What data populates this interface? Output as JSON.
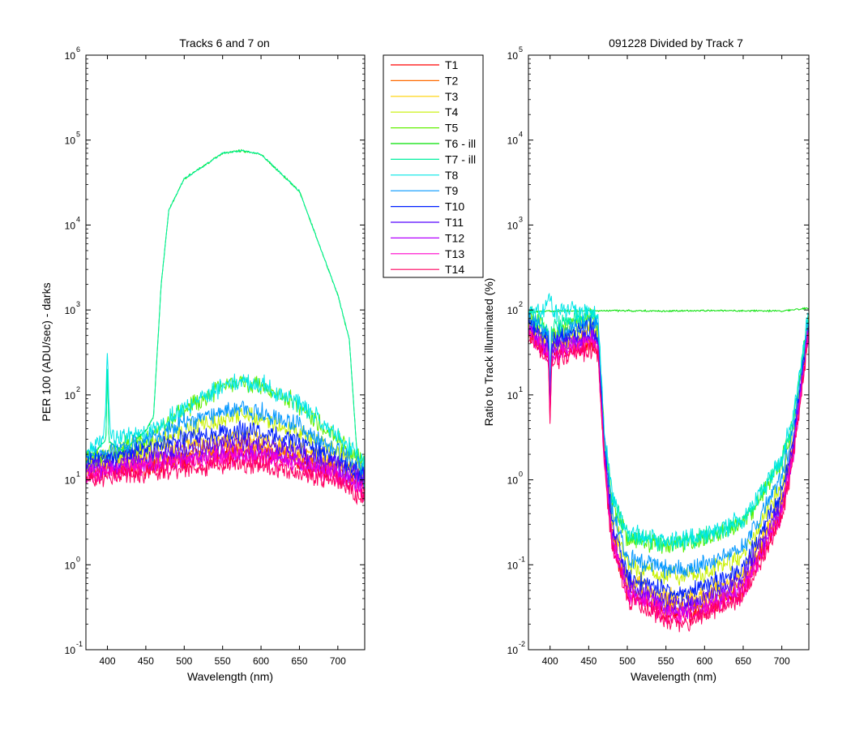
{
  "colors": [
    "#ff0000",
    "#ff6a00",
    "#ffd000",
    "#c8f000",
    "#60f000",
    "#00e000",
    "#00f0a0",
    "#00e6e6",
    "#0096ff",
    "#0020ff",
    "#5500ff",
    "#b400ff",
    "#ff00cc",
    "#ff0060"
  ],
  "chart_data": [
    {
      "type": "line",
      "title": "Tracks 6 and 7 on",
      "xlabel": "Wavelength (nm)",
      "ylabel": "PER 100  (ADU/sec) - darks",
      "xlim": [
        372,
        735
      ],
      "ylim": [
        0.1,
        1000000
      ],
      "yscale": "log",
      "xticks": [
        400,
        450,
        500,
        550,
        600,
        650,
        700
      ],
      "yticks": [
        {
          "base": "10",
          "exp": "-1"
        },
        {
          "base": "10",
          "exp": "0"
        },
        {
          "base": "10",
          "exp": "1"
        },
        {
          "base": "10",
          "exp": "2"
        },
        {
          "base": "10",
          "exp": "3"
        },
        {
          "base": "10",
          "exp": "4"
        },
        {
          "base": "10",
          "exp": "5"
        },
        {
          "base": "10",
          "exp": "6"
        }
      ],
      "grid": false,
      "series": [
        {
          "name": "T1",
          "x": [
            372,
            400,
            450,
            500,
            550,
            575,
            600,
            650,
            700,
            735
          ],
          "y": [
            12,
            13,
            14,
            17,
            20,
            20.5,
            19.5,
            16,
            12,
            9
          ]
        },
        {
          "name": "T2",
          "x": [
            372,
            400,
            450,
            500,
            550,
            575,
            600,
            650,
            700,
            735
          ],
          "y": [
            13,
            14,
            16,
            20,
            24,
            25,
            24,
            19,
            14,
            10
          ]
        },
        {
          "name": "T3",
          "x": [
            372,
            400,
            450,
            500,
            550,
            575,
            600,
            650,
            700,
            735
          ],
          "y": [
            15,
            16,
            19,
            25,
            30,
            32,
            30,
            23,
            16,
            11
          ]
        },
        {
          "name": "T4",
          "x": [
            372,
            400,
            450,
            500,
            550,
            575,
            600,
            650,
            700,
            735
          ],
          "y": [
            17,
            18,
            24,
            38,
            52,
            56,
            52,
            36,
            21,
            13
          ]
        },
        {
          "name": "T5",
          "x": [
            372,
            400,
            450,
            500,
            550,
            575,
            600,
            650,
            700,
            735
          ],
          "y": [
            19,
            21,
            30,
            65,
            125,
            140,
            130,
            75,
            30,
            15
          ]
        },
        {
          "name": "T6 - ill",
          "x": [
            372,
            398,
            400,
            402,
            420,
            450,
            460,
            470,
            480,
            500,
            550,
            575,
            600,
            650,
            700,
            715,
            725,
            735
          ],
          "y": [
            16,
            30,
            220,
            28,
            22,
            38,
            55,
            2000,
            15000,
            35000,
            70000,
            75000,
            68000,
            25000,
            1500,
            450,
            20,
            8
          ]
        },
        {
          "name": "T7 - ill",
          "x": [
            372,
            398,
            400,
            402,
            420,
            450,
            460,
            470,
            480,
            500,
            550,
            575,
            600,
            650,
            700,
            715,
            725,
            735
          ],
          "y": [
            16,
            30,
            220,
            28,
            22,
            38,
            55,
            2000,
            15000,
            35000,
            70000,
            75000,
            68000,
            25000,
            1500,
            450,
            20,
            8
          ]
        },
        {
          "name": "T8",
          "x": [
            372,
            396,
            400,
            404,
            450,
            500,
            550,
            575,
            600,
            650,
            700,
            735
          ],
          "y": [
            20,
            35,
            300,
            32,
            34,
            70,
            128,
            145,
            135,
            80,
            32,
            16
          ]
        },
        {
          "name": "T9",
          "x": [
            372,
            400,
            450,
            500,
            550,
            575,
            600,
            650,
            700,
            735
          ],
          "y": [
            18,
            20,
            28,
            48,
            64,
            68,
            62,
            42,
            22,
            13
          ]
        },
        {
          "name": "T10",
          "x": [
            372,
            400,
            450,
            500,
            550,
            575,
            600,
            650,
            700,
            735
          ],
          "y": [
            16,
            17,
            22,
            30,
            37,
            38,
            36,
            27,
            17,
            11
          ]
        },
        {
          "name": "T11",
          "x": [
            372,
            400,
            450,
            500,
            550,
            575,
            600,
            650,
            700,
            735
          ],
          "y": [
            14,
            15,
            18,
            23,
            27,
            28,
            26,
            21,
            15,
            10
          ]
        },
        {
          "name": "T12",
          "x": [
            372,
            400,
            450,
            500,
            550,
            575,
            600,
            650,
            700,
            735
          ],
          "y": [
            12,
            13,
            15,
            18,
            20,
            21,
            20,
            16,
            12,
            8
          ]
        },
        {
          "name": "T13",
          "x": [
            372,
            400,
            450,
            500,
            550,
            575,
            600,
            650,
            700,
            735
          ],
          "y": [
            11,
            12,
            14,
            16,
            18,
            18.5,
            18,
            14,
            11,
            7
          ]
        },
        {
          "name": "T14",
          "x": [
            372,
            400,
            450,
            500,
            550,
            575,
            600,
            650,
            700,
            735
          ],
          "y": [
            10,
            11,
            12,
            14,
            15,
            15.5,
            15,
            12,
            9.5,
            6
          ]
        }
      ]
    },
    {
      "type": "line",
      "title": "091228 Divided by Track 7",
      "xlabel": "Wavelength (nm)",
      "ylabel": "Ratio to Track illuminated (%)",
      "xlim": [
        372,
        735
      ],
      "ylim": [
        0.01,
        100000
      ],
      "yscale": "log",
      "xticks": [
        400,
        450,
        500,
        550,
        600,
        650,
        700
      ],
      "yticks": [
        {
          "base": "10",
          "exp": "-2"
        },
        {
          "base": "10",
          "exp": "-1"
        },
        {
          "base": "10",
          "exp": "0"
        },
        {
          "base": "10",
          "exp": "1"
        },
        {
          "base": "10",
          "exp": "2"
        },
        {
          "base": "10",
          "exp": "3"
        },
        {
          "base": "10",
          "exp": "4"
        },
        {
          "base": "10",
          "exp": "5"
        }
      ],
      "grid": false,
      "series": [
        {
          "name": "T1",
          "x": [
            372,
            398,
            400,
            402,
            455,
            462,
            470,
            480,
            500,
            550,
            575,
            600,
            650,
            700,
            715,
            735
          ],
          "y": [
            55,
            30,
            6,
            30,
            40,
            35,
            2,
            0.2,
            0.05,
            0.028,
            0.027,
            0.03,
            0.05,
            0.4,
            2,
            60
          ]
        },
        {
          "name": "T2",
          "x": [
            372,
            398,
            400,
            402,
            455,
            462,
            470,
            480,
            500,
            550,
            575,
            600,
            650,
            700,
            715,
            735
          ],
          "y": [
            62,
            34,
            7,
            34,
            48,
            40,
            2,
            0.22,
            0.055,
            0.033,
            0.032,
            0.036,
            0.06,
            0.5,
            2.5,
            65
          ]
        },
        {
          "name": "T3",
          "x": [
            372,
            398,
            400,
            402,
            455,
            462,
            470,
            480,
            500,
            550,
            575,
            600,
            650,
            700,
            715,
            735
          ],
          "y": [
            68,
            38,
            8,
            38,
            55,
            45,
            2.5,
            0.3,
            0.065,
            0.042,
            0.04,
            0.046,
            0.08,
            0.6,
            3,
            70
          ]
        },
        {
          "name": "T4",
          "x": [
            372,
            398,
            400,
            402,
            455,
            462,
            470,
            480,
            500,
            550,
            575,
            600,
            650,
            700,
            715,
            735
          ],
          "y": [
            75,
            45,
            9,
            45,
            70,
            55,
            3,
            0.4,
            0.1,
            0.075,
            0.073,
            0.08,
            0.13,
            0.9,
            4,
            75
          ]
        },
        {
          "name": "T5",
          "x": [
            372,
            398,
            400,
            402,
            455,
            462,
            470,
            480,
            500,
            550,
            575,
            600,
            650,
            700,
            715,
            735
          ],
          "y": [
            85,
            55,
            12,
            55,
            90,
            65,
            3.5,
            0.6,
            0.2,
            0.17,
            0.18,
            0.2,
            0.3,
            1.6,
            5,
            85
          ]
        },
        {
          "name": "T6 - ill",
          "x": [
            372,
            400,
            450,
            500,
            550,
            600,
            650,
            700,
            735
          ],
          "y": [
            95,
            97,
            98,
            98,
            97,
            98,
            98,
            97,
            105
          ]
        },
        {
          "name": "T7 - ill",
          "x": [
            372,
            398,
            400,
            402,
            455,
            462,
            470,
            480,
            500,
            550,
            575,
            600,
            650,
            700,
            715,
            735
          ],
          "y": [
            90,
            60,
            14,
            60,
            95,
            70,
            3.6,
            0.65,
            0.22,
            0.18,
            0.19,
            0.21,
            0.32,
            1.7,
            5,
            90
          ]
        },
        {
          "name": "T8",
          "x": [
            372,
            396,
            400,
            404,
            455,
            462,
            470,
            480,
            500,
            550,
            575,
            600,
            650,
            700,
            715,
            735
          ],
          "y": [
            100,
            110,
            160,
            95,
            100,
            75,
            4,
            0.7,
            0.24,
            0.19,
            0.2,
            0.22,
            0.34,
            1.8,
            6,
            95
          ]
        },
        {
          "name": "T9",
          "x": [
            372,
            398,
            400,
            402,
            455,
            462,
            470,
            480,
            500,
            550,
            575,
            600,
            650,
            700,
            715,
            735
          ],
          "y": [
            80,
            50,
            10,
            50,
            75,
            60,
            3,
            0.45,
            0.12,
            0.09,
            0.09,
            0.1,
            0.16,
            1.1,
            4,
            80
          ]
        },
        {
          "name": "T10",
          "x": [
            372,
            398,
            400,
            402,
            455,
            462,
            470,
            480,
            500,
            550,
            575,
            600,
            650,
            700,
            715,
            735
          ],
          "y": [
            72,
            42,
            8,
            42,
            62,
            50,
            2.5,
            0.33,
            0.07,
            0.05,
            0.048,
            0.055,
            0.09,
            0.7,
            3,
            72
          ]
        },
        {
          "name": "T11",
          "x": [
            372,
            398,
            400,
            402,
            455,
            462,
            470,
            480,
            500,
            550,
            575,
            600,
            650,
            700,
            715,
            735
          ],
          "y": [
            65,
            36,
            7,
            36,
            52,
            42,
            2.2,
            0.26,
            0.06,
            0.037,
            0.036,
            0.04,
            0.07,
            0.55,
            2.5,
            68
          ]
        },
        {
          "name": "T12",
          "x": [
            372,
            398,
            400,
            402,
            455,
            462,
            470,
            480,
            500,
            550,
            575,
            600,
            650,
            700,
            715,
            735
          ],
          "y": [
            58,
            32,
            6,
            32,
            45,
            38,
            2,
            0.21,
            0.05,
            0.03,
            0.029,
            0.033,
            0.055,
            0.45,
            2.2,
            62
          ]
        },
        {
          "name": "T13",
          "x": [
            372,
            398,
            400,
            402,
            455,
            462,
            470,
            480,
            500,
            550,
            575,
            600,
            650,
            700,
            715,
            735
          ],
          "y": [
            52,
            28,
            5.5,
            28,
            40,
            34,
            1.8,
            0.19,
            0.045,
            0.026,
            0.025,
            0.029,
            0.048,
            0.4,
            2,
            58
          ]
        },
        {
          "name": "T14",
          "x": [
            372,
            398,
            400,
            402,
            455,
            462,
            470,
            480,
            500,
            550,
            575,
            600,
            650,
            700,
            715,
            735
          ],
          "y": [
            48,
            25,
            5,
            25,
            35,
            30,
            1.6,
            0.17,
            0.04,
            0.022,
            0.021,
            0.025,
            0.042,
            0.35,
            1.8,
            55
          ]
        }
      ]
    }
  ],
  "legend": {
    "placement": "between-panels",
    "entries": [
      "T1",
      "T2",
      "T3",
      "T4",
      "T5",
      "T6 - ill",
      "T7 - ill",
      "T8",
      "T9",
      "T10",
      "T11",
      "T12",
      "T13",
      "T14"
    ]
  }
}
